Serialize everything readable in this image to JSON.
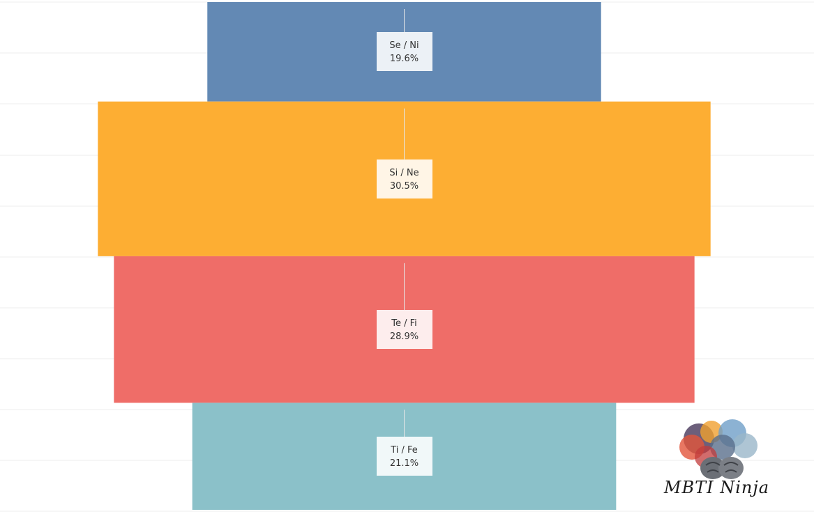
{
  "chart_data": {
    "type": "bar",
    "orientation": "horizontal-centered",
    "categories": [
      "Se / Ni",
      "Si / Ne",
      "Te / Fi",
      "Ti / Fe"
    ],
    "values": [
      19.6,
      30.5,
      28.9,
      21.1
    ],
    "value_labels": [
      "19.6%",
      "30.5%",
      "28.9%",
      "21.1%"
    ],
    "colors": [
      "#6389b4",
      "#fdae33",
      "#ef6d68",
      "#8bc1c9"
    ],
    "grid": true
  },
  "logo": {
    "text": "MBTI Ninja"
  }
}
